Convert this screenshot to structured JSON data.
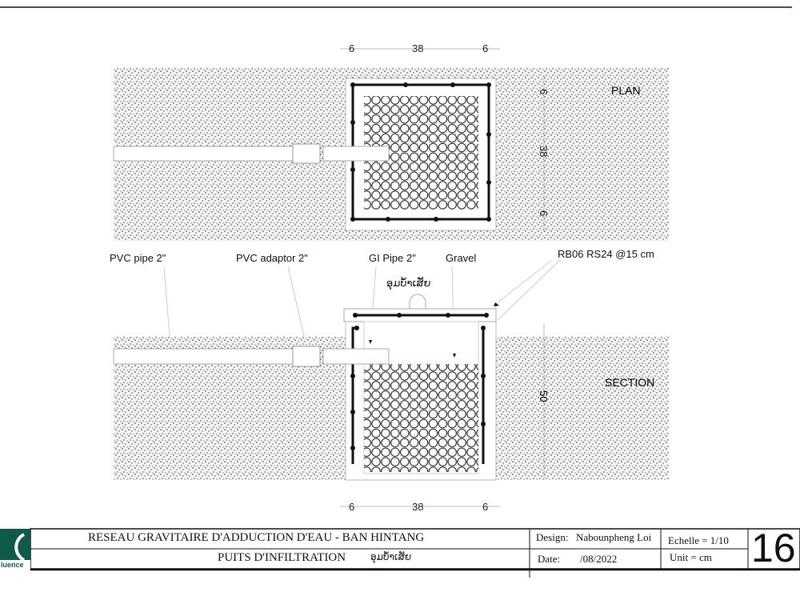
{
  "drawing": {
    "plan_label": "PLAN",
    "section_label": "SECTION",
    "dims_top": [
      "6",
      "38",
      "6"
    ],
    "dims_side": [
      "6",
      "38",
      "6"
    ],
    "dims_section_height": "50",
    "dims_bottom": [
      "6",
      "38",
      "6"
    ],
    "labels": {
      "pvc_pipe": "PVC pipe 2\"",
      "pvc_adaptor": "PVC adaptor 2\"",
      "gi_pipe": "GI Pipe 2\"",
      "gravel": "Gravel",
      "rebar": "RB06 RS24 @15 cm",
      "lid_lao": "ອຸມບ້ຳເສັຍ"
    }
  },
  "title_block": {
    "project": "RESEAU GRAVITAIRE D'ADDUCTION D'EAU -  BAN HINTANG",
    "sheet_title": "PUITS D'INFILTRATION",
    "sheet_title_lao": "ອຸມບ້ຳເສັຍ",
    "design_label": "Design:",
    "designer": "Nabounpheng Loi",
    "date_label": "Date:",
    "date": "/08/2022",
    "scale": "Echelle = 1/10",
    "unit": "Unit = cm",
    "sheet_number": "16",
    "logo_text": "luence",
    "logo_color": "#0f5a4a"
  }
}
